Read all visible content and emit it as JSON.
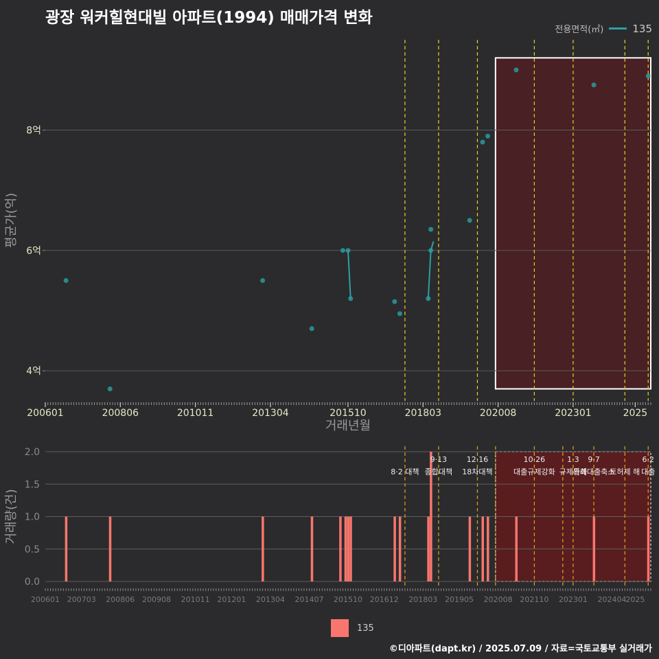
{
  "title": "광장 워커힐현대빌 아파트(1994) 매매가격 변화",
  "legend_top": {
    "title": "전용면적(㎡)",
    "value": "135",
    "color": "#2aa1a5"
  },
  "legend_bottom": {
    "label": "135",
    "color": "#f8766d"
  },
  "caption": "©디아파트(dapt.kr) / 2025.07.09 / 자료=국토교통부 실거래가",
  "chart_data": [
    {
      "type": "line",
      "name": "price",
      "xlabel": "거래년월",
      "ylabel": "평균가(억)",
      "ylim": [
        3.5,
        9.5
      ],
      "yticks": [
        {
          "v": 4,
          "label": "4억"
        },
        {
          "v": 6,
          "label": "6억"
        },
        {
          "v": 8,
          "label": "8억"
        }
      ],
      "xlim": [
        "2006-01",
        "2025-07"
      ],
      "xticks": [
        "200601",
        "200806",
        "201011",
        "201304",
        "201510",
        "201803",
        "202008",
        "202301",
        "2025"
      ],
      "grid": true,
      "series": [
        {
          "name": "135",
          "color": "#2aa1a5",
          "points": [
            {
              "x": "2006-09",
              "y": 5.5
            },
            {
              "x": "2008-02",
              "y": 3.7
            },
            {
              "x": "2013-01",
              "y": 5.5
            },
            {
              "x": "2014-08",
              "y": 4.7
            },
            {
              "x": "2015-08",
              "y": 6.0
            },
            {
              "x": "2015-10",
              "y": 6.0
            },
            {
              "x": "2015-11",
              "y": 5.2
            },
            {
              "x": "2017-04",
              "y": 5.15
            },
            {
              "x": "2017-06",
              "y": 4.95
            },
            {
              "x": "2018-05",
              "y": 5.2
            },
            {
              "x": "2018-06",
              "y": 6.0
            },
            {
              "x": "2018-06",
              "y": 6.35
            },
            {
              "x": "2019-09",
              "y": 6.5
            },
            {
              "x": "2020-02",
              "y": 7.8
            },
            {
              "x": "2020-04",
              "y": 7.9
            },
            {
              "x": "2021-03",
              "y": 9.0
            },
            {
              "x": "2023-09",
              "y": 8.75
            },
            {
              "x": "2025-06",
              "y": 8.9
            }
          ],
          "lines": [
            [
              {
                "x": "2015-10",
                "y": 6.0
              },
              {
                "x": "2015-11",
                "y": 5.2
              }
            ],
            [
              {
                "x": "2018-05",
                "y": 5.2
              },
              {
                "x": "2018-06",
                "y": 6.0
              },
              {
                "x": "2018-07",
                "y": 6.15
              }
            ]
          ]
        }
      ],
      "policy_lines": [
        "2017-08",
        "2018-09",
        "2019-12",
        "2021-10",
        "2023-01",
        "2024-09",
        "2025-06"
      ],
      "highlight": {
        "from": "2020-07",
        "to": "2025-07",
        "y_from": 3.7,
        "y_to": 9.2
      }
    },
    {
      "type": "bar",
      "name": "volume",
      "ylabel": "거래량(건)",
      "ylim": [
        0,
        2
      ],
      "yticks": [
        {
          "v": 0,
          "label": "0.0"
        },
        {
          "v": 0.5,
          "label": "0.5"
        },
        {
          "v": 1,
          "label": "1.0"
        },
        {
          "v": 1.5,
          "label": "1.5"
        },
        {
          "v": 2,
          "label": "2.0"
        }
      ],
      "xticks": [
        "200601",
        "200703",
        "200806",
        "200908",
        "201011",
        "201201",
        "201304",
        "201407",
        "201510",
        "201612",
        "201803",
        "201905",
        "202008",
        "202110",
        "202301",
        "202404",
        "2025"
      ],
      "color": "#f8766d",
      "bars": [
        {
          "x": "2006-09",
          "v": 1
        },
        {
          "x": "2008-02",
          "v": 1
        },
        {
          "x": "2013-01",
          "v": 1
        },
        {
          "x": "2014-08",
          "v": 1
        },
        {
          "x": "2015-07",
          "v": 1
        },
        {
          "x": "2015-09",
          "v": 1
        },
        {
          "x": "2015-10",
          "v": 1
        },
        {
          "x": "2015-11",
          "v": 1
        },
        {
          "x": "2017-04",
          "v": 1
        },
        {
          "x": "2017-06",
          "v": 1
        },
        {
          "x": "2018-05",
          "v": 1
        },
        {
          "x": "2018-06",
          "v": 2
        },
        {
          "x": "2019-09",
          "v": 1
        },
        {
          "x": "2020-02",
          "v": 1
        },
        {
          "x": "2020-04",
          "v": 1
        },
        {
          "x": "2021-03",
          "v": 1
        },
        {
          "x": "2023-09",
          "v": 1
        },
        {
          "x": "2025-06",
          "v": 1
        }
      ],
      "policy_lines": [
        "2017-08",
        "2018-09",
        "2019-12",
        "2020-07",
        "2021-10",
        "2022-09",
        "2023-01",
        "2023-09",
        "2024-09",
        "2025-06"
      ],
      "annotations": [
        {
          "x": "2017-08",
          "date": "",
          "text": "8·2 대책"
        },
        {
          "x": "2018-09",
          "date": "9·13",
          "text": "종합대책"
        },
        {
          "x": "2019-12",
          "date": "12·16",
          "text": "18차대책"
        },
        {
          "x": "2021-10",
          "date": "10·26",
          "text": "대출규제강화"
        },
        {
          "x": "2023-01",
          "date": "1·3",
          "text": "규제완화"
        },
        {
          "x": "2023-09",
          "date": "9·7",
          "text": "특례대출축소"
        },
        {
          "x": "2024-09",
          "date": "",
          "text": "토허제 해"
        },
        {
          "x": "2025-06",
          "date": "6·2",
          "text": "대출"
        }
      ],
      "highlight": {
        "from": "2020-07",
        "to": "2025-07"
      }
    }
  ]
}
